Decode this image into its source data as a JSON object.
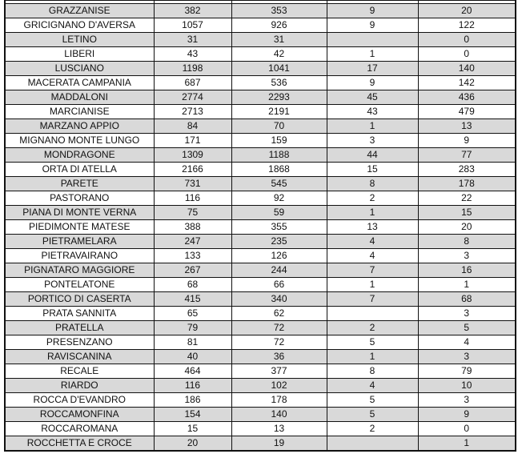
{
  "table": {
    "rows": [
      [
        "GRAZZANISE",
        "382",
        "353",
        "9",
        "20"
      ],
      [
        "GRICIGNANO D'AVERSA",
        "1057",
        "926",
        "9",
        "122"
      ],
      [
        "LETINO",
        "31",
        "31",
        "",
        "0"
      ],
      [
        "LIBERI",
        "43",
        "42",
        "1",
        "0"
      ],
      [
        "LUSCIANO",
        "1198",
        "1041",
        "17",
        "140"
      ],
      [
        "MACERATA CAMPANIA",
        "687",
        "536",
        "9",
        "142"
      ],
      [
        "MADDALONI",
        "2774",
        "2293",
        "45",
        "436"
      ],
      [
        "MARCIANISE",
        "2713",
        "2191",
        "43",
        "479"
      ],
      [
        "MARZANO APPIO",
        "84",
        "70",
        "1",
        "13"
      ],
      [
        "MIGNANO MONTE LUNGO",
        "171",
        "159",
        "3",
        "9"
      ],
      [
        "MONDRAGONE",
        "1309",
        "1188",
        "44",
        "77"
      ],
      [
        "ORTA DI ATELLA",
        "2166",
        "1868",
        "15",
        "283"
      ],
      [
        "PARETE",
        "731",
        "545",
        "8",
        "178"
      ],
      [
        "PASTORANO",
        "116",
        "92",
        "2",
        "22"
      ],
      [
        "PIANA DI MONTE VERNA",
        "75",
        "59",
        "1",
        "15"
      ],
      [
        "PIEDIMONTE MATESE",
        "388",
        "355",
        "13",
        "20"
      ],
      [
        "PIETRAMELARA",
        "247",
        "235",
        "4",
        "8"
      ],
      [
        "PIETRAVAIRANO",
        "133",
        "126",
        "4",
        "3"
      ],
      [
        "PIGNATARO MAGGIORE",
        "267",
        "244",
        "7",
        "16"
      ],
      [
        "PONTELATONE",
        "68",
        "66",
        "1",
        "1"
      ],
      [
        "PORTICO DI CASERTA",
        "415",
        "340",
        "7",
        "68"
      ],
      [
        "PRATA SANNITA",
        "65",
        "62",
        "",
        "3"
      ],
      [
        "PRATELLA",
        "79",
        "72",
        "2",
        "5"
      ],
      [
        "PRESENZANO",
        "81",
        "72",
        "5",
        "4"
      ],
      [
        "RAVISCANINA",
        "40",
        "36",
        "1",
        "3"
      ],
      [
        "RECALE",
        "464",
        "377",
        "8",
        "79"
      ],
      [
        "RIARDO",
        "116",
        "102",
        "4",
        "10"
      ],
      [
        "ROCCA D'EVANDRO",
        "186",
        "178",
        "5",
        "3"
      ],
      [
        "ROCCAMONFINA",
        "154",
        "140",
        "5",
        "9"
      ],
      [
        "ROCCAROMANA",
        "15",
        "13",
        "2",
        "0"
      ],
      [
        "ROCCHETTA E CROCE",
        "20",
        "19",
        "",
        "1"
      ]
    ]
  },
  "colors": {
    "stripe": "#d9d9d9",
    "border": "#111111"
  }
}
